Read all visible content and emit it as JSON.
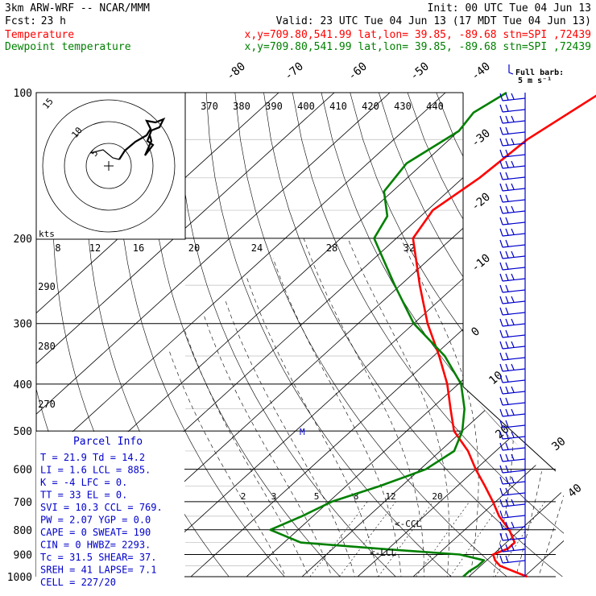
{
  "header": {
    "model": "3km ARW-WRF -- NCAR/MMM",
    "init": "Init: 00 UTC Tue 04 Jun 13",
    "fcst_label": "Fcst:",
    "fcst_value": "23 h",
    "valid": "Valid: 23 UTC Tue 04 Jun 13 (17 MDT Tue 04 Jun 13)",
    "temp_label": "Temperature",
    "dew_label": "Dewpoint temperature",
    "location": "x,y=709.80,541.99   lat,lon= 39.85, -89.68   stn=SPI ,72439",
    "location2": "x,y=709.80,541.99   lat,lon= 39.85, -89.68   stn=SPI ,72439"
  },
  "colors": {
    "temperature": "#ff0000",
    "dewpoint": "#008000"
  },
  "parcel": {
    "title": "Parcel Info",
    "rows": [
      "T   =    21.9 Td =  14.2",
      "LI  =     1.6 LCL =  885.",
      "K   =      -4 LFC =    0.",
      "TT  =      33 EL  =    0.",
      "SVI =    10.3 CCL =  769.",
      "PW  =    2.07 YGP =   0.0",
      "CAPE =      0 SWEAT=   190",
      "CIN  =      0 HWBZ= 2293.",
      "Tc  =    31.5 SHEAR=   37.",
      "SREH =     41 LAPSE=   7.1",
      "CELL = 227/20"
    ]
  },
  "barb_legend": {
    "line1": "Full barb:",
    "line2": "5 m s⁻¹"
  },
  "hodograph": {
    "unit": "kts",
    "ring_labels": [
      "5",
      "10",
      "15"
    ],
    "speed_ticks": [
      "8",
      "12",
      "16",
      "20",
      "24",
      "28",
      "32"
    ]
  },
  "annotations": {
    "ccl": "<-CCL",
    "lcl": "<-LCL",
    "m": "M"
  },
  "chart_data": {
    "type": "line",
    "title": "",
    "pressure_levels": [
      100,
      200,
      300,
      400,
      500,
      600,
      700,
      800,
      900,
      1000
    ],
    "isotherm_labels_top": [
      "-80",
      "-70",
      "-60",
      "-50",
      "-40"
    ],
    "isotherm_labels_right": [
      "-30",
      "-20",
      "-10",
      "0",
      "10",
      "20",
      "30",
      "40"
    ],
    "theta_e_labels": [
      "370",
      "380",
      "390",
      "400",
      "410",
      "420",
      "430",
      "440"
    ],
    "theta_labels": [
      "290",
      "280",
      "270"
    ],
    "mixing_ratio_labels": [
      "2",
      "3",
      "5",
      "8",
      "12",
      "20"
    ],
    "series": [
      {
        "name": "Temperature",
        "p": [
          1000,
          950,
          925,
          900,
          875,
          850,
          800,
          750,
          700,
          650,
          600,
          550,
          500,
          450,
          400,
          350,
          300,
          250,
          200,
          175,
          150,
          125,
          100
        ],
        "t": [
          30.5,
          23.5,
          21.5,
          20.0,
          21.5,
          21.5,
          18.0,
          13.5,
          9.5,
          5.0,
          0.0,
          -5.0,
          -11.5,
          -16.5,
          -22.0,
          -29.0,
          -37.5,
          -46.5,
          -57.0,
          -59.0,
          -57.0,
          -56.0,
          -52.0
        ]
      },
      {
        "name": "Dewpoint temperature",
        "p": [
          1000,
          975,
          950,
          925,
          900,
          875,
          850,
          800,
          750,
          700,
          650,
          600,
          550,
          500,
          450,
          400,
          350,
          300,
          250,
          200,
          180,
          160,
          140,
          120,
          110,
          100
        ],
        "t": [
          19.0,
          19.0,
          19.5,
          19.5,
          14.0,
          -2.0,
          -17.0,
          -25.0,
          -22.0,
          -19.5,
          -14.0,
          -9.0,
          -7.5,
          -10.0,
          -14.0,
          -19.5,
          -28.0,
          -40.0,
          -51.0,
          -64.0,
          -66.0,
          -71.5,
          -73.0,
          -70.0,
          -71.0,
          -69.0
        ]
      }
    ]
  }
}
